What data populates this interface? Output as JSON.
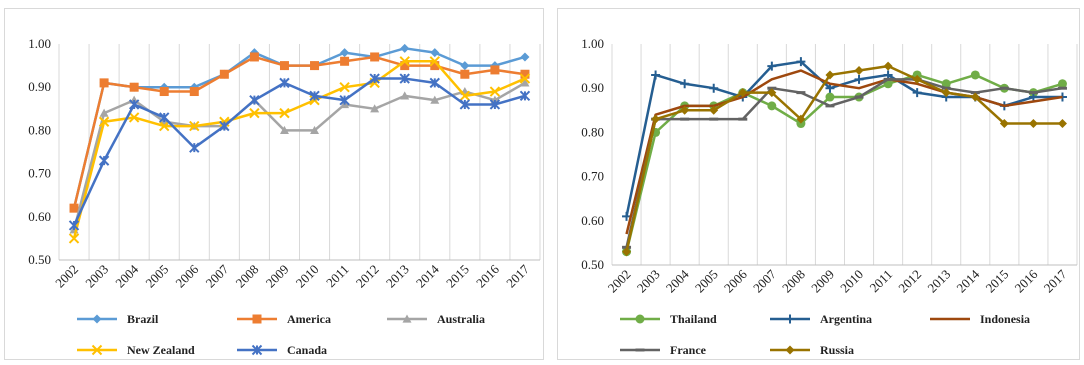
{
  "chart_data": [
    {
      "type": "line",
      "title": "",
      "xlabel": "",
      "ylabel": "",
      "ylim": [
        0.5,
        1.0
      ],
      "yticks": [
        "0.50",
        "0.60",
        "0.70",
        "0.80",
        "0.90",
        "1.00"
      ],
      "grid": "vertical",
      "legend": "bottom",
      "x": [
        "2002",
        "2003",
        "2004",
        "2005",
        "2006",
        "2007",
        "2008",
        "2009",
        "2010",
        "2011",
        "2012",
        "2013",
        "2014",
        "2015",
        "2016",
        "2017"
      ],
      "series": [
        {
          "name": "Brazil",
          "color": "#5b9bd5",
          "marker": "diamond",
          "values": [
            0.62,
            0.91,
            0.9,
            0.9,
            0.9,
            0.93,
            0.98,
            0.95,
            0.95,
            0.98,
            0.97,
            0.99,
            0.98,
            0.95,
            0.95,
            0.97
          ]
        },
        {
          "name": "America",
          "color": "#ed7d31",
          "marker": "square",
          "values": [
            0.62,
            0.91,
            0.9,
            0.89,
            0.89,
            0.93,
            0.97,
            0.95,
            0.95,
            0.96,
            0.97,
            0.95,
            0.95,
            0.93,
            0.94,
            0.93
          ]
        },
        {
          "name": "Australia",
          "color": "#a5a5a5",
          "marker": "triangle",
          "values": [
            0.57,
            0.84,
            0.87,
            0.82,
            0.81,
            0.81,
            0.87,
            0.8,
            0.8,
            0.86,
            0.85,
            0.88,
            0.87,
            0.89,
            0.87,
            0.91
          ]
        },
        {
          "name": "New Zealand",
          "color": "#ffc000",
          "marker": "x",
          "values": [
            0.55,
            0.82,
            0.83,
            0.81,
            0.81,
            0.82,
            0.84,
            0.84,
            0.87,
            0.9,
            0.91,
            0.96,
            0.96,
            0.88,
            0.89,
            0.92
          ]
        },
        {
          "name": "Canada",
          "color": "#4472c4",
          "marker": "star",
          "values": [
            0.58,
            0.73,
            0.86,
            0.83,
            0.76,
            0.81,
            0.87,
            0.91,
            0.88,
            0.87,
            0.92,
            0.92,
            0.91,
            0.86,
            0.86,
            0.88
          ]
        }
      ]
    },
    {
      "type": "line",
      "title": "",
      "xlabel": "",
      "ylabel": "",
      "ylim": [
        0.5,
        1.0
      ],
      "yticks": [
        "0.50",
        "0.60",
        "0.70",
        "0.80",
        "0.90",
        "1.00"
      ],
      "grid": "vertical",
      "legend": "bottom",
      "x": [
        "2002",
        "2003",
        "2004",
        "2005",
        "2006",
        "2007",
        "2008",
        "2009",
        "2010",
        "2011",
        "2012",
        "2013",
        "2014",
        "2015",
        "2016",
        "2017"
      ],
      "series": [
        {
          "name": "Thailand",
          "color": "#70ad47",
          "marker": "circle",
          "values": [
            0.53,
            0.8,
            0.86,
            0.86,
            0.89,
            0.86,
            0.82,
            0.88,
            0.88,
            0.91,
            0.93,
            0.91,
            0.93,
            0.9,
            0.89,
            0.91
          ]
        },
        {
          "name": "Argentina",
          "color": "#255e91",
          "marker": "plus",
          "values": [
            0.61,
            0.93,
            0.91,
            0.9,
            0.88,
            0.95,
            0.96,
            0.9,
            0.92,
            0.93,
            0.89,
            0.88,
            0.88,
            0.86,
            0.88,
            0.88
          ]
        },
        {
          "name": "Indonesia",
          "color": "#9e480e",
          "marker": "none",
          "values": [
            0.57,
            0.84,
            0.86,
            0.86,
            0.88,
            0.92,
            0.94,
            0.91,
            0.9,
            0.92,
            0.91,
            0.89,
            0.88,
            0.86,
            0.87,
            0.88
          ]
        },
        {
          "name": "France",
          "color": "#636363",
          "marker": "dash",
          "values": [
            0.54,
            0.83,
            0.83,
            0.83,
            0.83,
            0.9,
            0.89,
            0.86,
            0.88,
            0.92,
            0.92,
            0.9,
            0.89,
            0.9,
            0.89,
            0.9
          ]
        },
        {
          "name": "Russia",
          "color": "#997300",
          "marker": "diamond",
          "values": [
            0.53,
            0.83,
            0.85,
            0.85,
            0.89,
            0.89,
            0.83,
            0.93,
            0.94,
            0.95,
            0.92,
            0.89,
            0.88,
            0.82,
            0.82,
            0.82
          ]
        }
      ]
    }
  ]
}
